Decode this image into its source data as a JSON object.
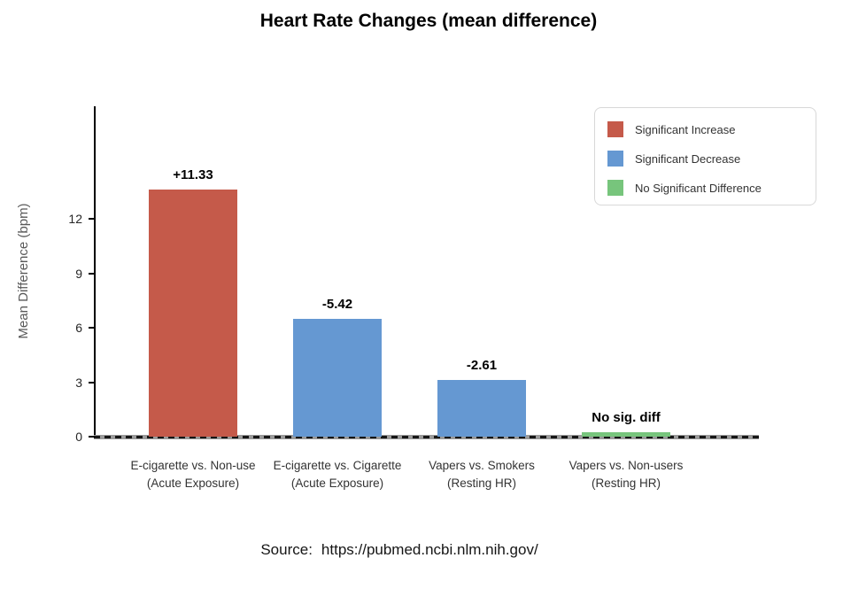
{
  "chart_data": {
    "type": "bar",
    "title": "Heart Rate Changes (mean difference)",
    "ylabel": "Mean Difference (bpm)",
    "yticks": [
      0,
      3,
      6,
      9,
      12
    ],
    "ylim": [
      0,
      18
    ],
    "grid": false,
    "legend_position": "upper-right",
    "categories": [
      "E-cigarette vs. Non-use (Acute Exposure)",
      "E-cigarette vs. Cigarette (Acute Exposure)",
      "Vapers vs. Smokers (Resting HR)",
      "Vapers vs. Non-users (Resting HR)"
    ],
    "bars": [
      {
        "line1": "E-cigarette vs. Non-use",
        "line2": "(Acute Exposure)",
        "value": 11.33,
        "value_label": "+11.33",
        "legend_group": "Significant Increase",
        "color": "#c55a4a"
      },
      {
        "line1": "E-cigarette vs. Cigarette",
        "line2": "(Acute Exposure)",
        "value": -5.42,
        "value_label": "-5.42",
        "legend_group": "Significant Decrease",
        "color": "#6598d2"
      },
      {
        "line1": "Vapers vs. Smokers",
        "line2": "(Resting HR)",
        "value": -2.61,
        "value_label": "-2.61",
        "legend_group": "Significant Decrease",
        "color": "#6598d2"
      },
      {
        "line1": "Vapers vs. Non-users",
        "line2": "(Resting HR)",
        "value": 0.2,
        "value_label": "No sig. diff",
        "legend_group": "No Significant Difference",
        "color": "#77c57c"
      }
    ],
    "legend": [
      {
        "label": "Significant Increase",
        "color": "#c55a4a"
      },
      {
        "label": "Significant Decrease",
        "color": "#6598d2"
      },
      {
        "label": "No Significant Difference",
        "color": "#77c57c"
      }
    ],
    "source": {
      "label": "Source:",
      "url": "https://pubmed.ncbi.nlm.nih.gov/"
    }
  },
  "colors": {
    "increase": "#c55a4a",
    "decrease": "#6598d2",
    "no_difference": "#77c57c",
    "axis_line": "#000000",
    "zero_line_gray": "#9a9a9a",
    "y_axis_title": "#595959"
  }
}
